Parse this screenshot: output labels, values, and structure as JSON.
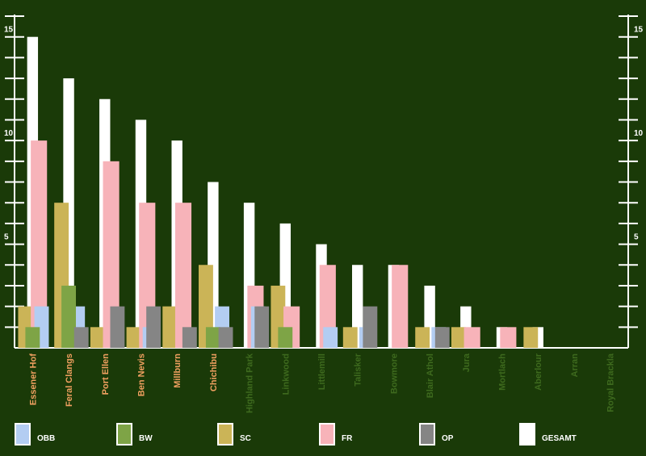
{
  "chart_data": {
    "type": "bar",
    "categories": [
      "Essener Hof",
      "Feral Clangs",
      "Port Ellen",
      "Ben Nevis",
      "Millburn",
      "Chichibu",
      "Highland Park",
      "Linkwood",
      "Littlemill",
      "Talisker",
      "Bowmore",
      "Blair Athol",
      "Jura",
      "Mortlach",
      "Aberlour",
      "Arran",
      "Royal Brackla"
    ],
    "category_label_colors": [
      "#f0a060",
      "#f0a060",
      "#f0a060",
      "#f0a060",
      "#f0a060",
      "#f0a060",
      "#3e6a1e",
      "#3e6a1e",
      "#3e6a1e",
      "#3e6a1e",
      "#3e6a1e",
      "#3e6a1e",
      "#3e6a1e",
      "#3e6a1e",
      "#3e6a1e",
      "#3e6a1e",
      "#3e6a1e"
    ],
    "series": [
      {
        "name": "GESAMT",
        "color": "#ffffff",
        "values": [
          15,
          13,
          12,
          11,
          10,
          8,
          7,
          6,
          5,
          4,
          4,
          3,
          2,
          1,
          1,
          0,
          0
        ]
      },
      {
        "name": "SC",
        "color": "#cbb457",
        "values": [
          2,
          7,
          1,
          1,
          2,
          4,
          0,
          3,
          0,
          1,
          0,
          1,
          1,
          0,
          1,
          0,
          0
        ]
      },
      {
        "name": "FR",
        "color": "#f7b3b9",
        "values": [
          10,
          0,
          9,
          7,
          7,
          0,
          3,
          2,
          4,
          0,
          4,
          0,
          1,
          1,
          0,
          0,
          0
        ]
      },
      {
        "name": "OBB",
        "color": "#b3cdf2",
        "values": [
          2,
          2,
          0,
          1,
          0,
          2,
          2,
          0,
          1,
          1,
          0,
          1,
          0,
          0,
          0,
          0,
          0
        ]
      },
      {
        "name": "BW",
        "color": "#7ea446",
        "values": [
          1,
          3,
          0,
          0,
          0,
          1,
          0,
          1,
          0,
          0,
          0,
          0,
          0,
          0,
          0,
          0,
          0
        ]
      },
      {
        "name": "OP",
        "color": "#858585",
        "values": [
          0,
          1,
          2,
          2,
          1,
          1,
          2,
          0,
          0,
          2,
          0,
          1,
          0,
          0,
          0,
          0,
          0
        ]
      }
    ],
    "legend_order": [
      3,
      4,
      1,
      2,
      5,
      0
    ],
    "ylim": [
      0,
      16
    ],
    "yticks": [
      5,
      10,
      15
    ],
    "minor_yticks": [
      1,
      2,
      3,
      4,
      6,
      7,
      8,
      9,
      11,
      12,
      13,
      14,
      16
    ]
  }
}
